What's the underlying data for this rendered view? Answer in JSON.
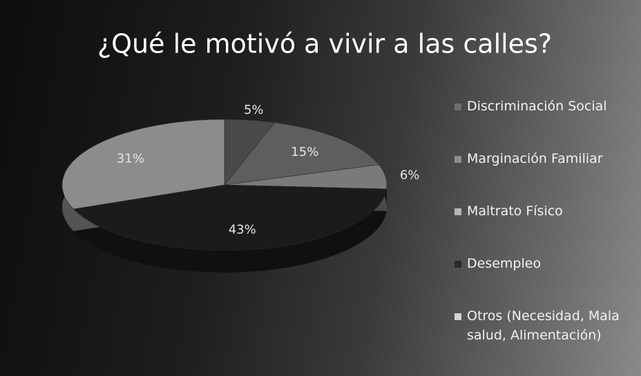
{
  "chart_data": {
    "type": "pie",
    "title": "¿Qué le motivó a vivir a las calles?",
    "categories": [
      "Discriminación Social",
      "Marginación Familiar",
      "Maltrato Físico",
      "Desempleo",
      "Otros (Necesidad, Mala salud, Alimentación)"
    ],
    "values": [
      5,
      15,
      6,
      43,
      31
    ],
    "value_labels": [
      "5%",
      "15%",
      "6%",
      "43%",
      "31%"
    ],
    "colors": [
      "#4a4a4a",
      "#5e5e5e",
      "#7a7a7a",
      "#1b1b1b",
      "#8c8c8c"
    ],
    "legend": "right"
  }
}
